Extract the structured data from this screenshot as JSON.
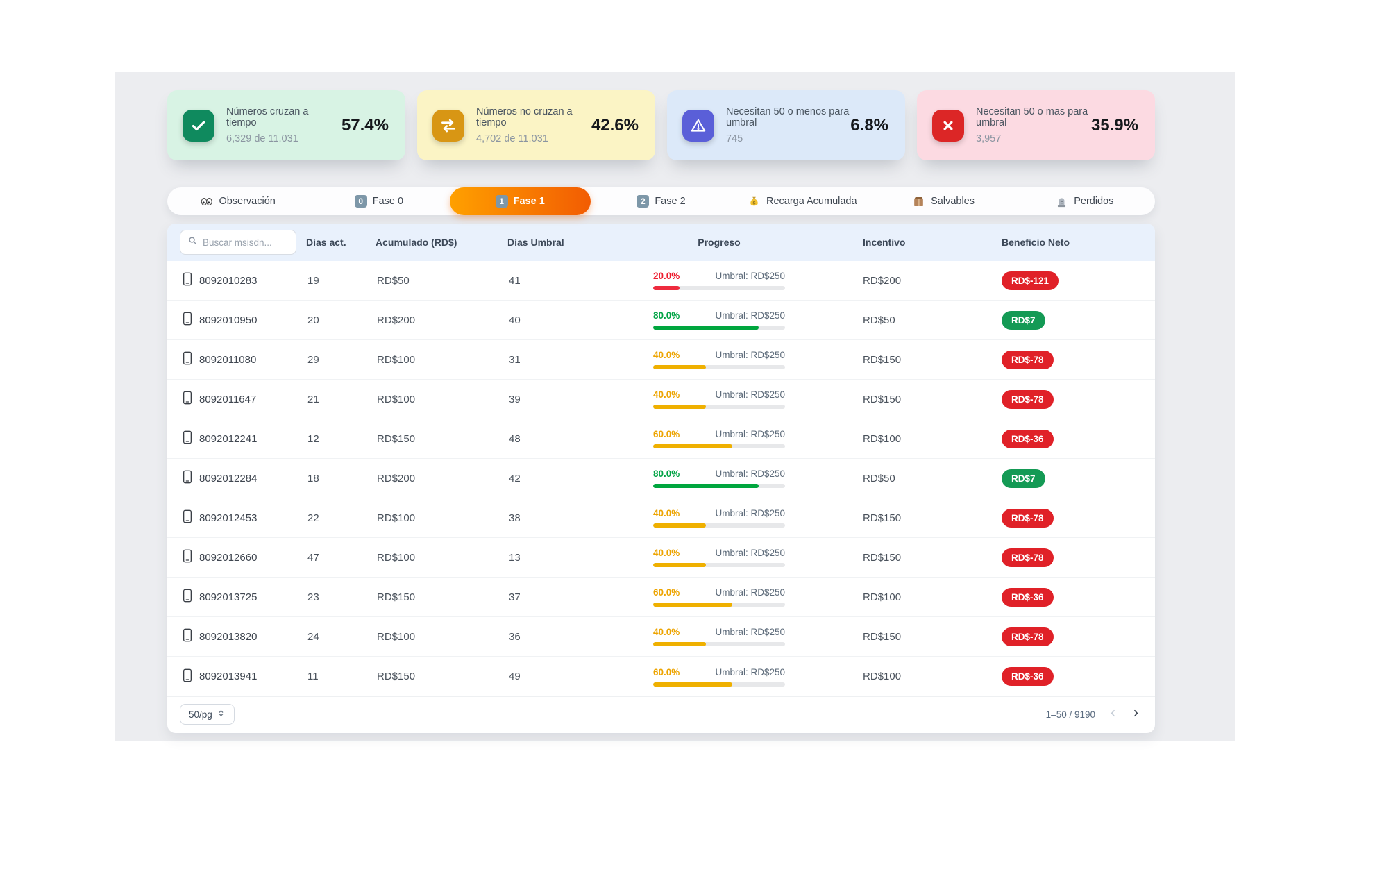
{
  "cards": [
    {
      "title": "Números cruzan a tiempo",
      "subtitle": "6,329 de 11,031",
      "value": "57.4%",
      "bg": "#d8f3e4",
      "icon_bg": "#0f8a5e",
      "icon": "check"
    },
    {
      "title": "Números no cruzan a tiempo",
      "subtitle": "4,702 de 11,031",
      "value": "42.6%",
      "bg": "#fbf4c5",
      "icon_bg": "#d89614",
      "icon": "swap"
    },
    {
      "title": "Necesitan 50 o menos para umbral",
      "subtitle": "745",
      "value": "6.8%",
      "bg": "#dce9f9",
      "icon_bg": "#5a5fd8",
      "icon": "warning"
    },
    {
      "title": "Necesitan 50 o mas para umbral",
      "subtitle": "3,957",
      "value": "35.9%",
      "bg": "#fcdae2",
      "icon_bg": "#dc2626",
      "icon": "x"
    }
  ],
  "tabs": [
    {
      "label": "Observación",
      "icon": "eyes",
      "active": false
    },
    {
      "label": "Fase 0",
      "icon": "keycap-0",
      "active": false
    },
    {
      "label": "Fase 1",
      "icon": "keycap-1",
      "active": true
    },
    {
      "label": "Fase 2",
      "icon": "keycap-2",
      "active": false
    },
    {
      "label": "Recarga Acumulada",
      "icon": "moneybag",
      "active": false
    },
    {
      "label": "Salvables",
      "icon": "package",
      "active": false
    },
    {
      "label": "Perdidos",
      "icon": "tombstone",
      "active": false
    }
  ],
  "table": {
    "search_placeholder": "Buscar msisdn...",
    "columns": [
      "Días act.",
      "Acumulado (RD$)",
      "Días Umbral",
      "Progreso",
      "Incentivo",
      "Beneficio Neto"
    ],
    "umbral_label": "Umbral: RD$250",
    "rows": [
      {
        "msisdn": "8092010283",
        "dias_act": "19",
        "acumulado": "RD$50",
        "dias_umbral": "41",
        "progreso_label": "20.0%",
        "progreso_value": 20,
        "color": "red",
        "incentivo": "RD$200",
        "beneficio": "RD$-121",
        "beneficio_color": "red"
      },
      {
        "msisdn": "8092010950",
        "dias_act": "20",
        "acumulado": "RD$200",
        "dias_umbral": "40",
        "progreso_label": "80.0%",
        "progreso_value": 80,
        "color": "green",
        "incentivo": "RD$50",
        "beneficio": "RD$7",
        "beneficio_color": "green"
      },
      {
        "msisdn": "8092011080",
        "dias_act": "29",
        "acumulado": "RD$100",
        "dias_umbral": "31",
        "progreso_label": "40.0%",
        "progreso_value": 40,
        "color": "amber",
        "incentivo": "RD$150",
        "beneficio": "RD$-78",
        "beneficio_color": "red"
      },
      {
        "msisdn": "8092011647",
        "dias_act": "21",
        "acumulado": "RD$100",
        "dias_umbral": "39",
        "progreso_label": "40.0%",
        "progreso_value": 40,
        "color": "amber",
        "incentivo": "RD$150",
        "beneficio": "RD$-78",
        "beneficio_color": "red"
      },
      {
        "msisdn": "8092012241",
        "dias_act": "12",
        "acumulado": "RD$150",
        "dias_umbral": "48",
        "progreso_label": "60.0%",
        "progreso_value": 60,
        "color": "amber",
        "incentivo": "RD$100",
        "beneficio": "RD$-36",
        "beneficio_color": "red"
      },
      {
        "msisdn": "8092012284",
        "dias_act": "18",
        "acumulado": "RD$200",
        "dias_umbral": "42",
        "progreso_label": "80.0%",
        "progreso_value": 80,
        "color": "green",
        "incentivo": "RD$50",
        "beneficio": "RD$7",
        "beneficio_color": "green"
      },
      {
        "msisdn": "8092012453",
        "dias_act": "22",
        "acumulado": "RD$100",
        "dias_umbral": "38",
        "progreso_label": "40.0%",
        "progreso_value": 40,
        "color": "amber",
        "incentivo": "RD$150",
        "beneficio": "RD$-78",
        "beneficio_color": "red"
      },
      {
        "msisdn": "8092012660",
        "dias_act": "47",
        "acumulado": "RD$100",
        "dias_umbral": "13",
        "progreso_label": "40.0%",
        "progreso_value": 40,
        "color": "amber",
        "incentivo": "RD$150",
        "beneficio": "RD$-78",
        "beneficio_color": "red"
      },
      {
        "msisdn": "8092013725",
        "dias_act": "23",
        "acumulado": "RD$150",
        "dias_umbral": "37",
        "progreso_label": "60.0%",
        "progreso_value": 60,
        "color": "amber",
        "incentivo": "RD$100",
        "beneficio": "RD$-36",
        "beneficio_color": "red"
      },
      {
        "msisdn": "8092013820",
        "dias_act": "24",
        "acumulado": "RD$100",
        "dias_umbral": "36",
        "progreso_label": "40.0%",
        "progreso_value": 40,
        "color": "amber",
        "incentivo": "RD$150",
        "beneficio": "RD$-78",
        "beneficio_color": "red"
      },
      {
        "msisdn": "8092013941",
        "dias_act": "11",
        "acumulado": "RD$150",
        "dias_umbral": "49",
        "progreso_label": "60.0%",
        "progreso_value": 60,
        "color": "amber",
        "incentivo": "RD$100",
        "beneficio": "RD$-36",
        "beneficio_color": "red"
      }
    ]
  },
  "pagination": {
    "page_size": "50/pg",
    "range_label": "1–50 / 9190"
  },
  "colors": {
    "accent_orange": "#f25c02",
    "red": "#e02128",
    "green": "#149a55",
    "amber": "#efb000",
    "header_bg": "#e9f1fc"
  }
}
